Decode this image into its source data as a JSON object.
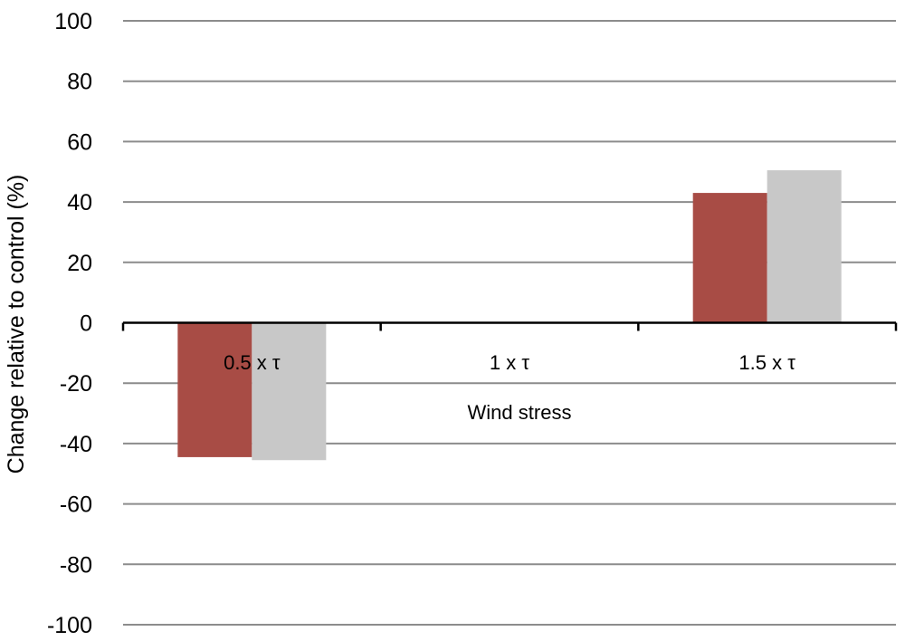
{
  "chart_data": {
    "type": "bar",
    "categories": [
      "0.5 x τ",
      "1 x τ",
      "1.5 x τ"
    ],
    "series": [
      {
        "values": [
          -44.5,
          0,
          43
        ],
        "color": "#a84c45"
      },
      {
        "values": [
          -45.5,
          0,
          50.5
        ],
        "color": "#c8c8c8"
      }
    ],
    "title": "",
    "xlabel": "Wind stress",
    "ylabel": "Change relative to control (%)",
    "ylim": [
      -100,
      100
    ],
    "yticks": [
      100,
      80,
      60,
      40,
      20,
      0,
      -20,
      -40,
      -60,
      -80,
      -100
    ],
    "grid": true,
    "legend": "none"
  }
}
